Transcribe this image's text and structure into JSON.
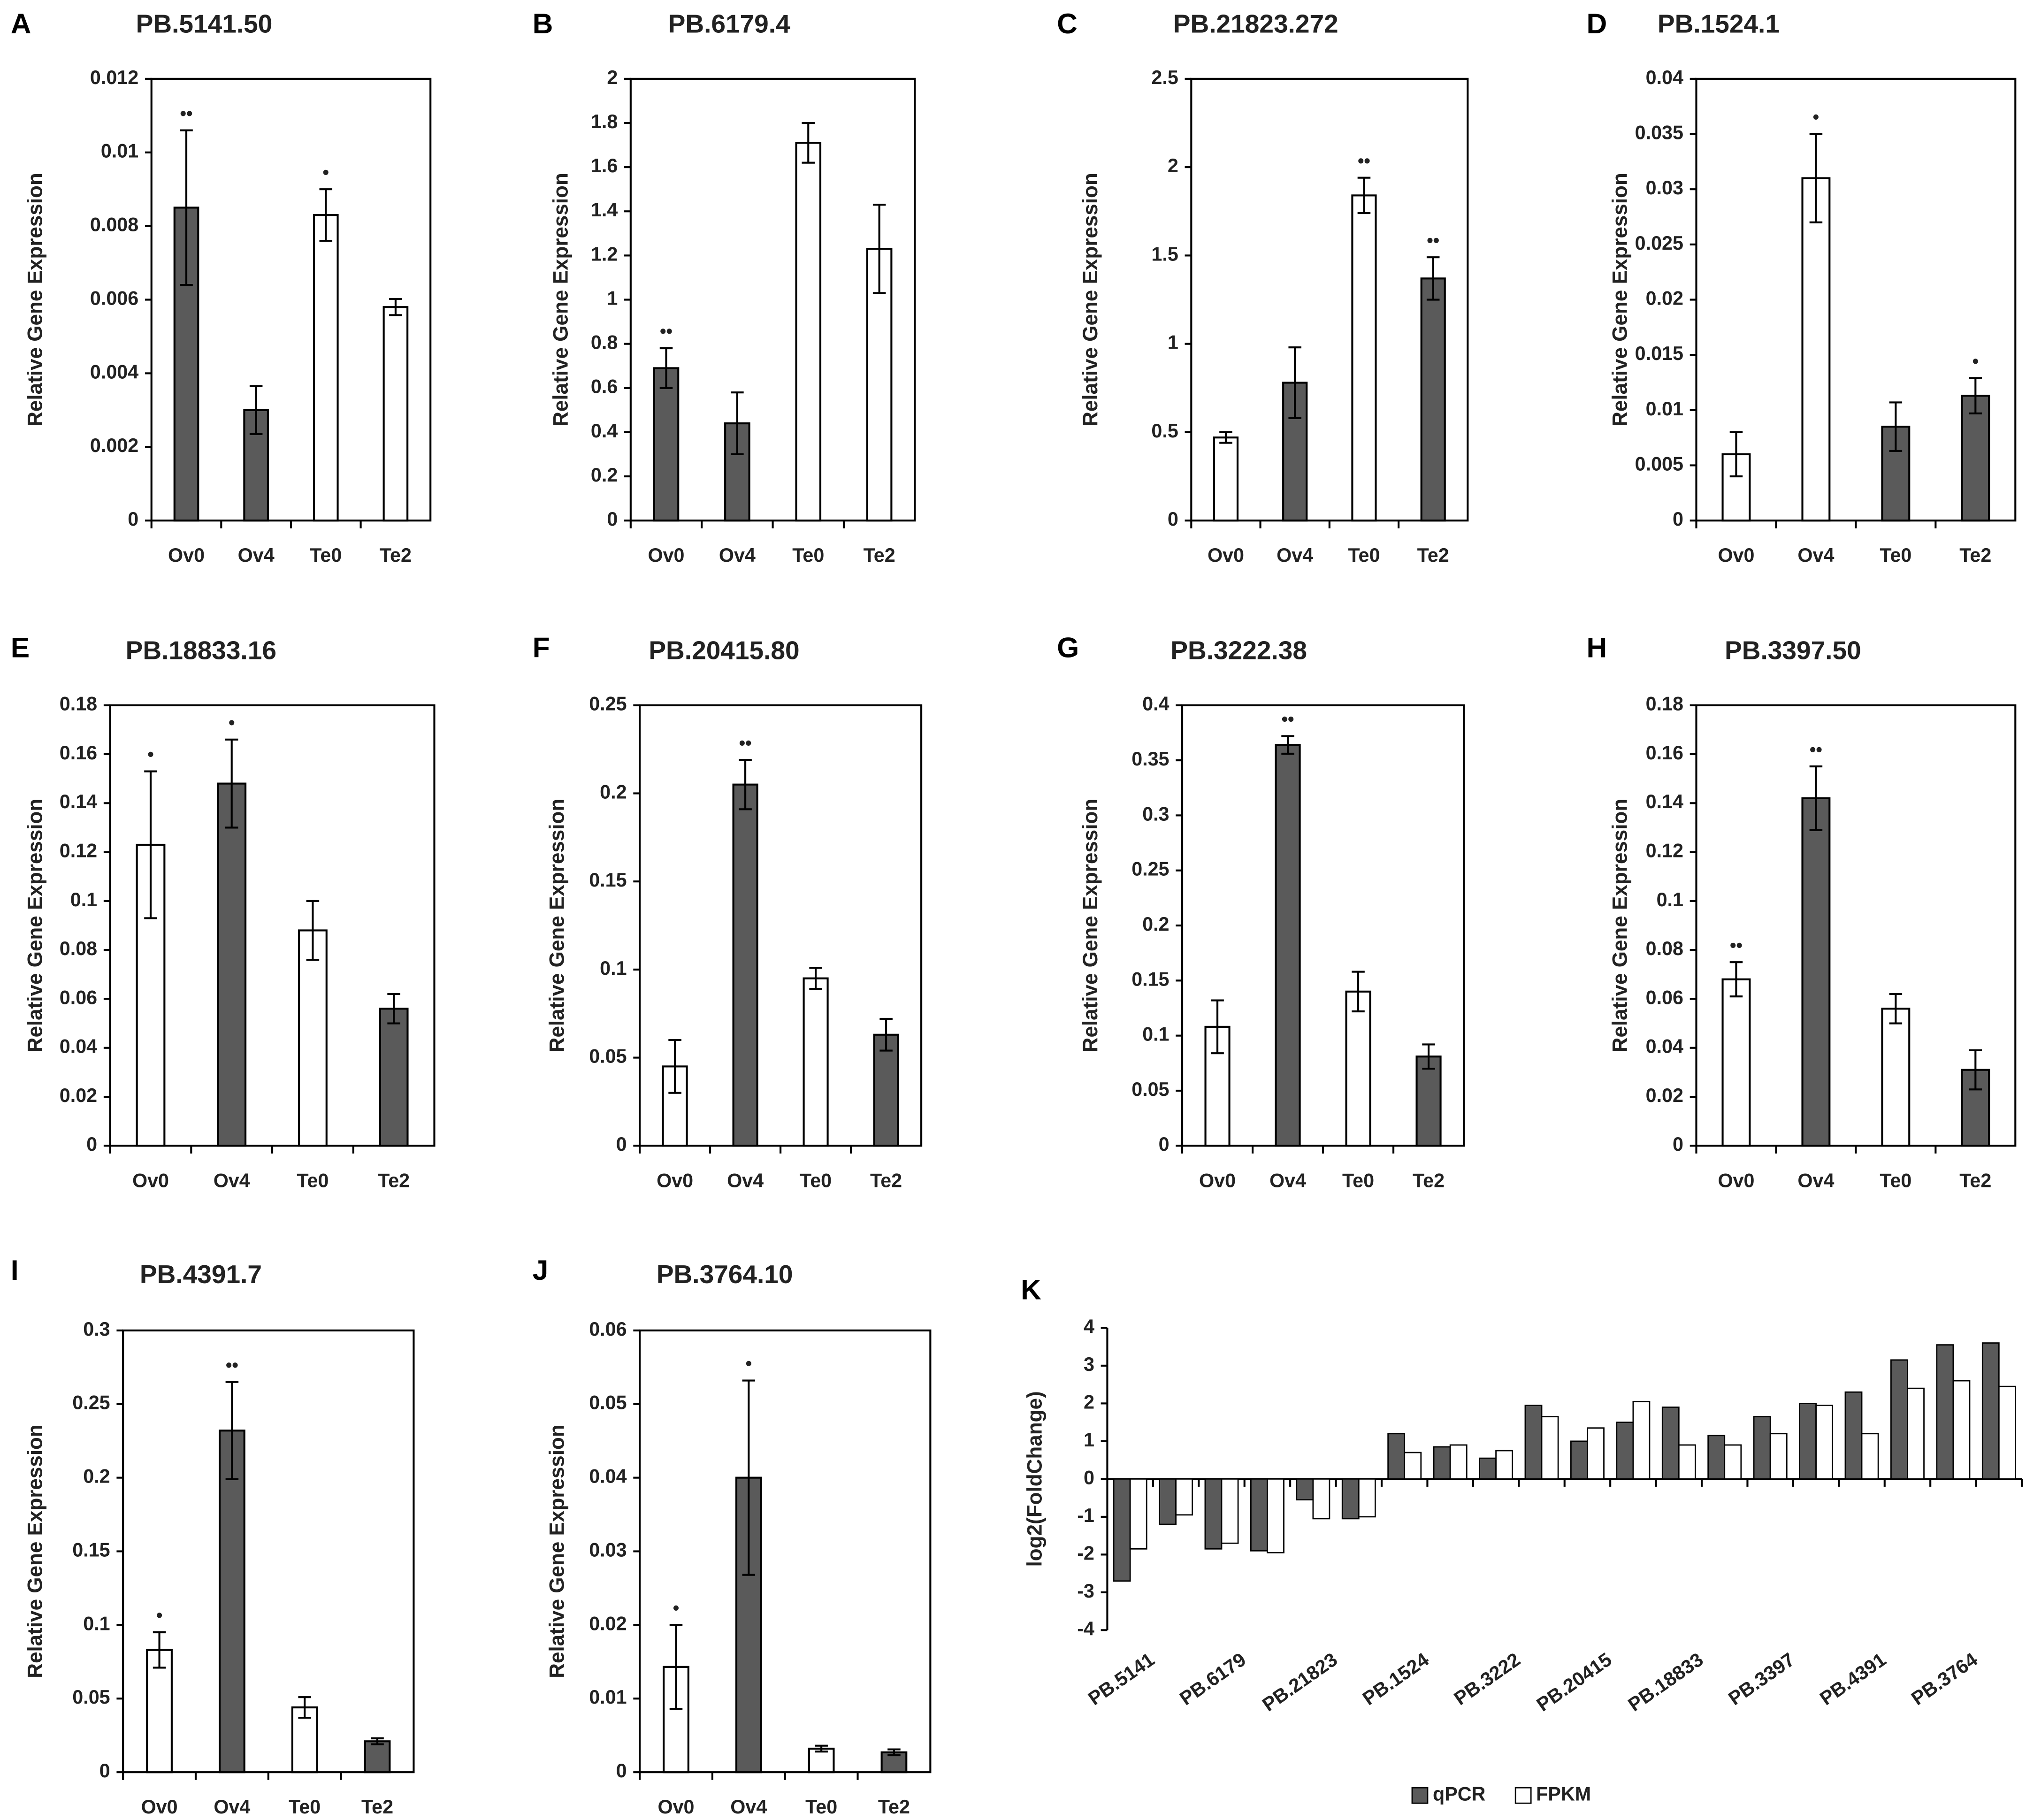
{
  "chart_data": [
    {
      "type": "bar",
      "label": "A",
      "title": "PB.5141.50",
      "ylabel": "Relative Gene Expression",
      "categories": [
        "Ov0",
        "Ov4",
        "Te0",
        "Te2"
      ],
      "values": [
        0.0085,
        0.003,
        0.0083,
        0.0058
      ],
      "errors": [
        0.0021,
        0.00065,
        0.0007,
        0.00022
      ],
      "colors": [
        "#5a5a5a",
        "#5a5a5a",
        "#ffffff",
        "#ffffff"
      ],
      "annotations": [
        "••",
        null,
        "•",
        null
      ],
      "ylim": [
        0,
        0.012
      ],
      "yticks": [
        0,
        0.002,
        0.004,
        0.006,
        0.008,
        0.01,
        0.012
      ]
    },
    {
      "type": "bar",
      "label": "B",
      "title": "PB.6179.4",
      "ylabel": "Relative Gene Expression",
      "categories": [
        "Ov0",
        "Ov4",
        "Te0",
        "Te2"
      ],
      "values": [
        0.69,
        0.44,
        1.71,
        1.23
      ],
      "errors": [
        0.09,
        0.14,
        0.09,
        0.2
      ],
      "colors": [
        "#5a5a5a",
        "#5a5a5a",
        "#ffffff",
        "#ffffff"
      ],
      "annotations": [
        "••",
        null,
        null,
        null
      ],
      "ylim": [
        0,
        2
      ],
      "yticks": [
        0,
        0.2,
        0.4,
        0.6,
        0.8,
        1,
        1.2,
        1.4,
        1.6,
        1.8,
        2
      ]
    },
    {
      "type": "bar",
      "label": "C",
      "title": "PB.21823.272",
      "ylabel": "Relative Gene Expression",
      "categories": [
        "Ov0",
        "Ov4",
        "Te0",
        "Te2"
      ],
      "values": [
        0.47,
        0.78,
        1.84,
        1.37
      ],
      "errors": [
        0.03,
        0.2,
        0.1,
        0.12
      ],
      "colors": [
        "#ffffff",
        "#5a5a5a",
        "#ffffff",
        "#5a5a5a"
      ],
      "annotations": [
        null,
        null,
        "••",
        "••"
      ],
      "ylim": [
        0,
        2.5
      ],
      "yticks": [
        0,
        0.5,
        1,
        1.5,
        2,
        2.5
      ]
    },
    {
      "type": "bar",
      "label": "D",
      "title": "PB.1524.1",
      "ylabel": "Relative Gene Expression",
      "categories": [
        "Ov0",
        "Ov4",
        "Te0",
        "Te2"
      ],
      "values": [
        0.006,
        0.031,
        0.0085,
        0.0113
      ],
      "errors": [
        0.002,
        0.004,
        0.0022,
        0.0016
      ],
      "colors": [
        "#ffffff",
        "#ffffff",
        "#5a5a5a",
        "#5a5a5a"
      ],
      "annotations": [
        null,
        "•",
        null,
        "•"
      ],
      "ylim": [
        0,
        0.04
      ],
      "yticks": [
        0,
        0.005,
        0.01,
        0.015,
        0.02,
        0.025,
        0.03,
        0.035,
        0.04
      ]
    },
    {
      "type": "bar",
      "label": "E",
      "title": "PB.18833.16",
      "ylabel": "Relative Gene Expression",
      "categories": [
        "Ov0",
        "Ov4",
        "Te0",
        "Te2"
      ],
      "values": [
        0.123,
        0.148,
        0.088,
        0.056
      ],
      "errors": [
        0.03,
        0.018,
        0.012,
        0.006
      ],
      "colors": [
        "#ffffff",
        "#5a5a5a",
        "#ffffff",
        "#5a5a5a"
      ],
      "annotations": [
        "•",
        "•",
        null,
        null
      ],
      "ylim": [
        0,
        0.18
      ],
      "yticks": [
        0,
        0.02,
        0.04,
        0.06,
        0.08,
        0.1,
        0.12,
        0.14,
        0.16,
        0.18
      ]
    },
    {
      "type": "bar",
      "label": "F",
      "title": "PB.20415.80",
      "ylabel": "Relative Gene Expression",
      "categories": [
        "Ov0",
        "Ov4",
        "Te0",
        "Te2"
      ],
      "values": [
        0.045,
        0.205,
        0.095,
        0.063
      ],
      "errors": [
        0.015,
        0.014,
        0.006,
        0.009
      ],
      "colors": [
        "#ffffff",
        "#5a5a5a",
        "#ffffff",
        "#5a5a5a"
      ],
      "annotations": [
        null,
        "••",
        null,
        null
      ],
      "ylim": [
        0,
        0.25
      ],
      "yticks": [
        0,
        0.05,
        0.1,
        0.15,
        0.2,
        0.25
      ]
    },
    {
      "type": "bar",
      "label": "G",
      "title": "PB.3222.38",
      "ylabel": "Relative Gene Expression",
      "categories": [
        "Ov0",
        "Ov4",
        "Te0",
        "Te2"
      ],
      "values": [
        0.108,
        0.364,
        0.14,
        0.081
      ],
      "errors": [
        0.024,
        0.008,
        0.018,
        0.011
      ],
      "colors": [
        "#ffffff",
        "#5a5a5a",
        "#ffffff",
        "#5a5a5a"
      ],
      "annotations": [
        null,
        "••",
        null,
        null
      ],
      "ylim": [
        0,
        0.4
      ],
      "yticks": [
        0,
        0.05,
        0.1,
        0.15,
        0.2,
        0.25,
        0.3,
        0.35,
        0.4
      ]
    },
    {
      "type": "bar",
      "label": "H",
      "title": "PB.3397.50",
      "ylabel": "Relative Gene Expression",
      "categories": [
        "Ov0",
        "Ov4",
        "Te0",
        "Te2"
      ],
      "values": [
        0.068,
        0.142,
        0.056,
        0.031
      ],
      "errors": [
        0.007,
        0.013,
        0.006,
        0.008
      ],
      "colors": [
        "#ffffff",
        "#5a5a5a",
        "#ffffff",
        "#5a5a5a"
      ],
      "annotations": [
        "••",
        "••",
        null,
        null
      ],
      "ylim": [
        0,
        0.18
      ],
      "yticks": [
        0,
        0.02,
        0.04,
        0.06,
        0.08,
        0.1,
        0.12,
        0.14,
        0.16,
        0.18
      ]
    },
    {
      "type": "bar",
      "label": "I",
      "title": "PB.4391.7",
      "ylabel": "Relative Gene Expression",
      "categories": [
        "Ov0",
        "Ov4",
        "Te0",
        "Te2"
      ],
      "values": [
        0.083,
        0.232,
        0.044,
        0.021
      ],
      "errors": [
        0.012,
        0.033,
        0.007,
        0.002
      ],
      "colors": [
        "#ffffff",
        "#5a5a5a",
        "#ffffff",
        "#5a5a5a"
      ],
      "annotations": [
        "•",
        "••",
        null,
        null
      ],
      "ylim": [
        0,
        0.3
      ],
      "yticks": [
        0,
        0.05,
        0.1,
        0.15,
        0.2,
        0.25,
        0.3
      ]
    },
    {
      "type": "bar",
      "label": "J",
      "title": "PB.3764.10",
      "ylabel": "Relative Gene Expression",
      "categories": [
        "Ov0",
        "Ov4",
        "Te0",
        "Te2"
      ],
      "values": [
        0.0143,
        0.04,
        0.0032,
        0.0027
      ],
      "errors": [
        0.0057,
        0.0132,
        0.0004,
        0.0004
      ],
      "colors": [
        "#ffffff",
        "#5a5a5a",
        "#ffffff",
        "#5a5a5a"
      ],
      "annotations": [
        "•",
        "•",
        null,
        null
      ],
      "ylim": [
        0,
        0.06
      ],
      "yticks": [
        0,
        0.01,
        0.02,
        0.03,
        0.04,
        0.05,
        0.06
      ]
    },
    {
      "type": "bar",
      "label": "K",
      "ylabel": "log2(FoldChange)",
      "categories": [
        "PB.5141",
        null,
        "PB.6179",
        null,
        "PB.21823",
        null,
        "PB.1524",
        null,
        "PB.3222",
        null,
        "PB.20415",
        null,
        "PB.18833",
        null,
        "PB.3397",
        null,
        "PB.4391",
        null,
        "PB.3764",
        null
      ],
      "series": [
        {
          "name": "qPCR",
          "color": "#5a5a5a",
          "values": [
            -2.7,
            -1.2,
            -1.85,
            -1.9,
            -0.55,
            -1.05,
            1.2,
            0.85,
            0.55,
            1.95,
            1.0,
            1.5,
            1.9,
            1.15,
            1.65,
            2.0,
            2.3,
            3.15,
            3.55,
            3.6
          ]
        },
        {
          "name": "FPKM",
          "color": "#ffffff",
          "values": [
            -1.85,
            -0.95,
            -1.7,
            -1.95,
            -1.05,
            -1.0,
            0.7,
            0.9,
            0.75,
            1.65,
            1.35,
            2.05,
            0.9,
            0.9,
            1.2,
            1.95,
            1.2,
            2.4,
            2.6,
            2.45
          ]
        }
      ],
      "legend": "bottom",
      "ylim": [
        -4,
        4
      ],
      "yticks": [
        -4,
        -3,
        -2,
        -1,
        0,
        1,
        2,
        3,
        4
      ]
    }
  ]
}
